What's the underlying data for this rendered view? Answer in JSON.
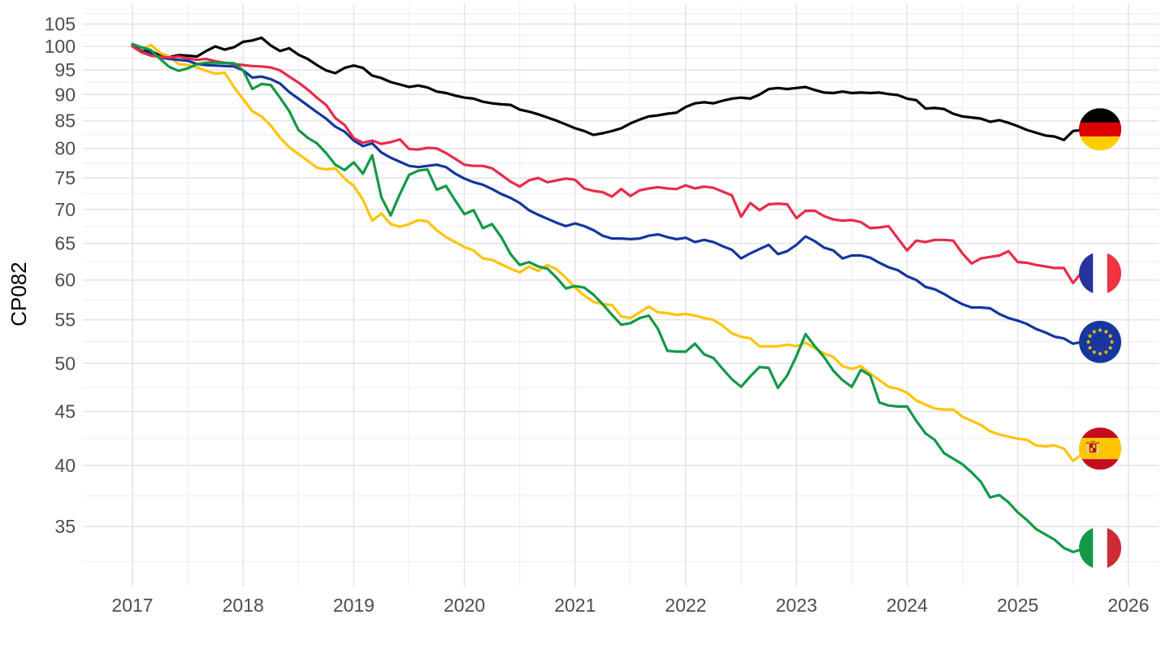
{
  "chart_data": {
    "type": "line",
    "title": "",
    "ylabel": "CP082",
    "y_scale": "log10",
    "x_unit": "monthly, 2017-01 through 2025-08",
    "n_points": 104,
    "grid": "on",
    "legend": "end-of-line country flag markers",
    "x_axis": {
      "ticks": [
        2017,
        2018,
        2019,
        2020,
        2021,
        2022,
        2023,
        2024,
        2025,
        2026
      ]
    },
    "y_axis": {
      "ticks": [
        105,
        100,
        95,
        90,
        85,
        80,
        75,
        70,
        65,
        60,
        55,
        50,
        45,
        40,
        35
      ]
    },
    "xlim": [
      2016.55,
      2026.27
    ],
    "ylim": [
      30.7,
      109.7
    ],
    "series": [
      {
        "id": "germany",
        "name": "Germany",
        "flag": "de",
        "color": "#000000",
        "flag_at": 83.4,
        "values": [
          100.3,
          99.5,
          99.0,
          98.0,
          97.7,
          98.1,
          98.0,
          97.8,
          99.0,
          100.0,
          99.3,
          99.8,
          101.0,
          101.3,
          101.9,
          100.2,
          99.0,
          99.6,
          98.2,
          97.3,
          96.0,
          94.9,
          94.3,
          95.4,
          95.9,
          95.4,
          93.8,
          93.3,
          92.5,
          92.0,
          91.5,
          91.8,
          91.4,
          90.6,
          90.3,
          89.8,
          89.4,
          89.2,
          88.6,
          88.3,
          88.1,
          88.0,
          87.1,
          86.7,
          86.2,
          85.6,
          85.0,
          84.3,
          83.6,
          83.1,
          82.4,
          82.7,
          83.1,
          83.6,
          84.5,
          85.2,
          85.8,
          86.0,
          86.3,
          86.5,
          87.6,
          88.3,
          88.5,
          88.3,
          88.8,
          89.2,
          89.4,
          89.2,
          90.0,
          91.1,
          91.3,
          91.1,
          91.3,
          91.5,
          90.9,
          90.4,
          90.3,
          90.6,
          90.3,
          90.4,
          90.3,
          90.4,
          90.1,
          89.9,
          89.2,
          88.9,
          87.3,
          87.4,
          87.2,
          86.3,
          85.8,
          85.6,
          85.4,
          84.8,
          85.1,
          84.6,
          84.0,
          83.3,
          82.8,
          82.3,
          82.1,
          81.5,
          83.1,
          83.3
        ]
      },
      {
        "id": "spain",
        "name": "Spain",
        "flag": "es",
        "color": "#FFC30A",
        "flag_at": 41.5,
        "values": [
          100.2,
          99.3,
          100.3,
          98.6,
          97.8,
          96.2,
          96.0,
          95.5,
          94.8,
          94.2,
          94.4,
          91.5,
          89.1,
          86.8,
          85.8,
          84.1,
          81.9,
          80.2,
          79.0,
          77.9,
          76.7,
          76.4,
          76.6,
          74.9,
          73.7,
          71.5,
          68.3,
          69.4,
          67.8,
          67.4,
          67.8,
          68.4,
          68.2,
          66.9,
          65.9,
          65.2,
          64.5,
          64.0,
          62.9,
          62.7,
          62.1,
          61.5,
          61.0,
          61.8,
          61.2,
          62.0,
          61.4,
          60.3,
          59.0,
          58.0,
          57.2,
          56.9,
          56.8,
          55.4,
          55.2,
          55.9,
          56.6,
          55.9,
          55.8,
          55.6,
          55.7,
          55.5,
          55.2,
          55.0,
          54.3,
          53.4,
          53.0,
          52.8,
          51.9,
          51.9,
          51.9,
          52.1,
          51.9,
          52.3,
          51.7,
          51.1,
          50.7,
          49.7,
          49.4,
          49.7,
          48.9,
          48.2,
          47.5,
          47.3,
          46.9,
          46.1,
          45.7,
          45.3,
          45.2,
          45.2,
          44.5,
          44.1,
          43.7,
          43.1,
          42.8,
          42.6,
          42.4,
          42.3,
          41.8,
          41.7,
          41.8,
          41.5,
          40.4,
          41.0
        ]
      },
      {
        "id": "european-union",
        "name": "European Union",
        "flag": "eu",
        "color": "#14369E",
        "flag_at": 52.4,
        "values": [
          100.1,
          99.0,
          98.4,
          97.6,
          97.3,
          97.1,
          96.9,
          96.2,
          96.0,
          95.9,
          95.8,
          95.7,
          94.9,
          93.4,
          93.6,
          93.1,
          92.2,
          90.5,
          89.2,
          87.9,
          86.6,
          85.4,
          83.9,
          83.0,
          81.4,
          80.4,
          80.9,
          79.3,
          78.4,
          77.7,
          77.0,
          76.8,
          77.0,
          77.2,
          76.8,
          75.7,
          74.9,
          74.3,
          73.9,
          73.2,
          72.4,
          71.8,
          71.0,
          69.9,
          69.2,
          68.6,
          68.0,
          67.5,
          67.9,
          67.5,
          66.9,
          66.1,
          65.7,
          65.7,
          65.6,
          65.7,
          66.1,
          66.3,
          65.9,
          65.6,
          65.8,
          65.2,
          65.5,
          65.2,
          64.6,
          64.1,
          62.9,
          63.6,
          64.2,
          64.8,
          63.5,
          63.9,
          64.8,
          66.0,
          65.3,
          64.4,
          64.0,
          62.9,
          63.3,
          63.3,
          63.0,
          62.3,
          61.7,
          61.3,
          60.5,
          60.0,
          59.1,
          58.8,
          58.2,
          57.5,
          56.9,
          56.5,
          56.5,
          56.4,
          55.7,
          55.2,
          54.9,
          54.5,
          53.9,
          53.5,
          53.0,
          52.8,
          52.2,
          52.4
        ]
      },
      {
        "id": "france",
        "name": "France",
        "flag": "fr",
        "color": "#E92A4A",
        "flag_at": 60.9,
        "values": [
          100.0,
          98.7,
          98.0,
          97.8,
          97.6,
          97.8,
          97.4,
          97.1,
          97.3,
          96.8,
          96.5,
          96.2,
          96.0,
          95.8,
          95.7,
          95.5,
          94.9,
          93.6,
          92.4,
          91.0,
          89.4,
          88.0,
          85.5,
          84.2,
          81.8,
          81.0,
          81.4,
          80.8,
          81.1,
          81.6,
          79.9,
          79.8,
          80.1,
          80.0,
          79.2,
          78.2,
          77.2,
          77.0,
          77.0,
          76.6,
          75.5,
          74.4,
          73.6,
          74.6,
          75.0,
          74.3,
          74.6,
          74.9,
          74.7,
          73.3,
          72.9,
          72.7,
          72.0,
          73.2,
          72.1,
          73.0,
          73.3,
          73.5,
          73.3,
          73.2,
          73.8,
          73.3,
          73.6,
          73.4,
          72.8,
          72.2,
          68.9,
          71.0,
          69.9,
          70.8,
          70.9,
          70.8,
          68.7,
          69.8,
          69.8,
          69.0,
          68.5,
          68.3,
          68.4,
          68.1,
          67.2,
          67.3,
          67.5,
          65.7,
          64.0,
          65.4,
          65.2,
          65.5,
          65.5,
          65.4,
          63.6,
          62.2,
          62.9,
          63.1,
          63.3,
          63.9,
          62.4,
          62.3,
          62.0,
          61.8,
          61.6,
          61.6,
          59.6,
          61.1
        ]
      },
      {
        "id": "italy",
        "name": "Italy",
        "flag": "it",
        "color": "#119848",
        "flag_at": 33.4,
        "values": [
          100.5,
          99.8,
          99.2,
          97.3,
          95.6,
          94.8,
          95.3,
          96.2,
          96.5,
          96.5,
          96.4,
          96.4,
          94.9,
          91.1,
          92.1,
          91.9,
          89.4,
          86.8,
          83.3,
          81.9,
          80.9,
          79.2,
          77.2,
          76.3,
          77.6,
          75.7,
          78.8,
          71.9,
          69.1,
          72.4,
          75.5,
          76.2,
          76.4,
          73.1,
          73.7,
          71.4,
          69.3,
          69.9,
          67.2,
          67.8,
          65.9,
          63.5,
          62.0,
          62.4,
          61.8,
          61.5,
          60.3,
          58.9,
          59.2,
          59.0,
          58.1,
          56.9,
          55.6,
          54.4,
          54.6,
          55.2,
          55.5,
          53.9,
          51.4,
          51.3,
          51.3,
          52.2,
          51.0,
          50.6,
          49.4,
          48.3,
          47.5,
          48.6,
          49.6,
          49.5,
          47.4,
          48.7,
          50.8,
          53.3,
          51.9,
          50.7,
          49.2,
          48.2,
          47.5,
          49.3,
          48.7,
          45.9,
          45.6,
          45.5,
          45.5,
          44.1,
          42.9,
          42.3,
          41.1,
          40.6,
          40.1,
          39.4,
          38.6,
          37.3,
          37.5,
          36.9,
          36.1,
          35.5,
          34.8,
          34.4,
          34.0,
          33.4,
          33.1,
          33.3
        ]
      }
    ]
  }
}
